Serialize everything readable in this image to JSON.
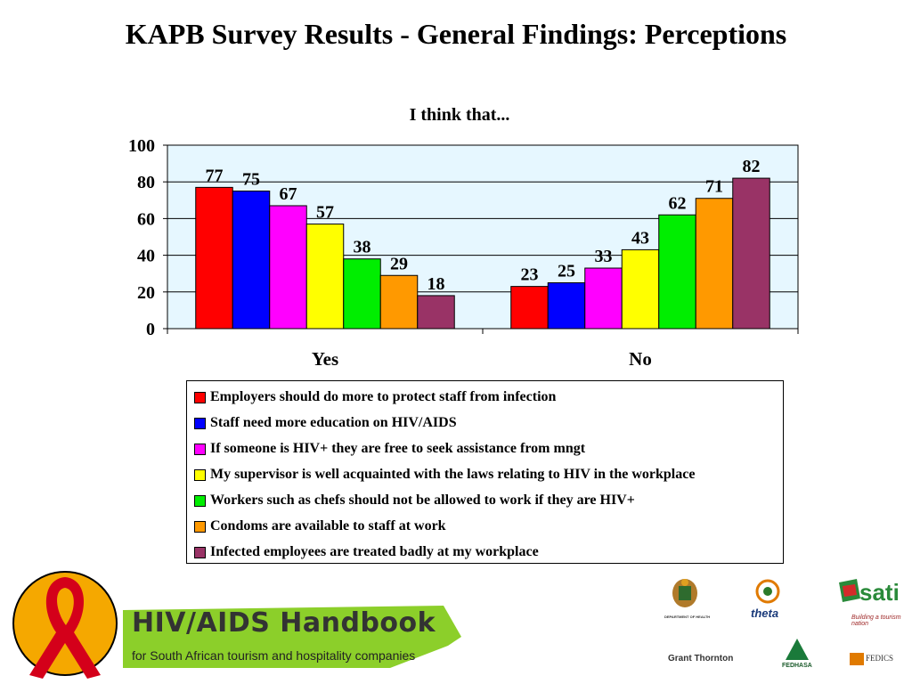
{
  "page": {
    "title": "KAPB Survey Results - General Findings: Perceptions"
  },
  "chart_data": {
    "type": "bar",
    "title": "I think that...",
    "categories": [
      "Yes",
      "No"
    ],
    "ylim": [
      0,
      100
    ],
    "yticks": [
      0,
      20,
      40,
      60,
      80,
      100
    ],
    "grid": true,
    "legend_position": "bottom",
    "plot_background": "#e6f7ff",
    "series": [
      {
        "name": "Employers should do more to protect staff from infection",
        "color": "#ff0000",
        "values": [
          77,
          23
        ]
      },
      {
        "name": "Staff need more education on HIV/AIDS",
        "color": "#0000ff",
        "values": [
          75,
          25
        ]
      },
      {
        "name": "If someone is HIV+ they are free to seek assistance from mngt",
        "color": "#ff00ff",
        "values": [
          67,
          33
        ]
      },
      {
        "name": "My supervisor is well acquainted with the laws relating to HIV in the workplace",
        "color": "#ffff00",
        "values": [
          57,
          43
        ]
      },
      {
        "name": "Workers such as chefs should not be allowed to work if they are HIV+",
        "color": "#00ee00",
        "values": [
          38,
          62
        ]
      },
      {
        "name": "Condoms are available to staff at work",
        "color": "#ff9900",
        "values": [
          29,
          71
        ]
      },
      {
        "name": "Infected employees are treated badly at my workplace",
        "color": "#993366",
        "values": [
          18,
          82
        ]
      }
    ]
  },
  "footer": {
    "handbook_title": "HIV/AIDS Handbook",
    "handbook_subtitle": "for South African tourism and hospitality companies",
    "logos": {
      "dept_health": "DEPARTMENT OF HEALTH",
      "theta": "theta",
      "sati": "sati",
      "sati_tagline": "Building a tourism nation",
      "grant_thornton": "Grant Thornton",
      "fedhasa": "FEDHASA",
      "fedics": "FEDICS"
    }
  }
}
